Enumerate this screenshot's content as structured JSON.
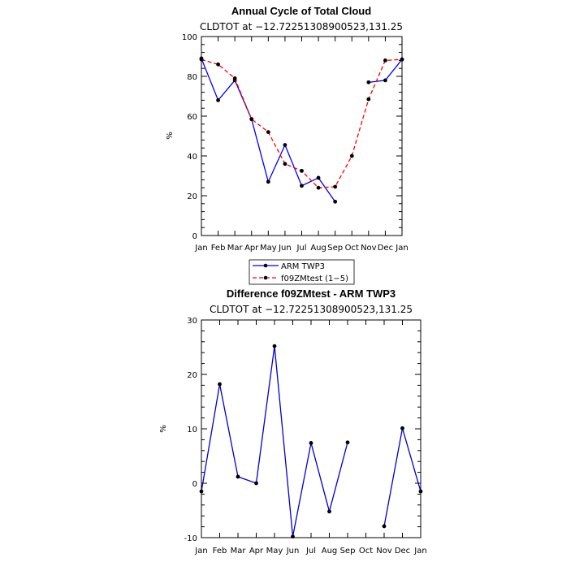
{
  "chart_data": [
    {
      "type": "line",
      "title": "Annual Cycle of Total Cloud",
      "subtitle": "CLDTOT at −12.72251308900523,131.25",
      "xlabel": "",
      "ylabel": "%",
      "categories": [
        "Jan",
        "Feb",
        "Mar",
        "Apr",
        "May",
        "Jun",
        "Jul",
        "Aug",
        "Sep",
        "Oct",
        "Nov",
        "Dec",
        "Jan"
      ],
      "ylim": [
        0,
        100
      ],
      "yticks": [
        0,
        20,
        40,
        60,
        80,
        100
      ],
      "series": [
        {
          "name": "ARM TWP3",
          "color": "#0000ff",
          "dash": "solid",
          "values": [
            89,
            68,
            78,
            58.5,
            27,
            45.5,
            25,
            29,
            17,
            null,
            77,
            78,
            88.5
          ]
        },
        {
          "name": "f09ZMtest (1−5)",
          "color": "#ff0000",
          "dash": "dashed",
          "values": [
            88.5,
            86,
            79,
            58.5,
            52,
            36,
            32.5,
            24,
            24.5,
            40,
            68.5,
            88,
            88.5
          ]
        }
      ],
      "legend": "bottom-center"
    },
    {
      "type": "line",
      "title": "Difference f09ZMtest - ARM TWP3",
      "subtitle": "CLDTOT at −12.72251308900523,131.25",
      "xlabel": "",
      "ylabel": "%",
      "categories": [
        "Jan",
        "Feb",
        "Mar",
        "Apr",
        "May",
        "Jun",
        "Jul",
        "Aug",
        "Sep",
        "Oct",
        "Nov",
        "Dec",
        "Jan"
      ],
      "ylim": [
        -10,
        30
      ],
      "yticks": [
        -10,
        0,
        10,
        20,
        30
      ],
      "series": [
        {
          "color": "#0000cc",
          "dash": "solid",
          "values": [
            -1.5,
            18.2,
            1.2,
            0,
            25.2,
            -9.8,
            7.4,
            -5.2,
            7.5,
            null,
            -7.9,
            10.1,
            -1.5
          ]
        }
      ]
    }
  ]
}
